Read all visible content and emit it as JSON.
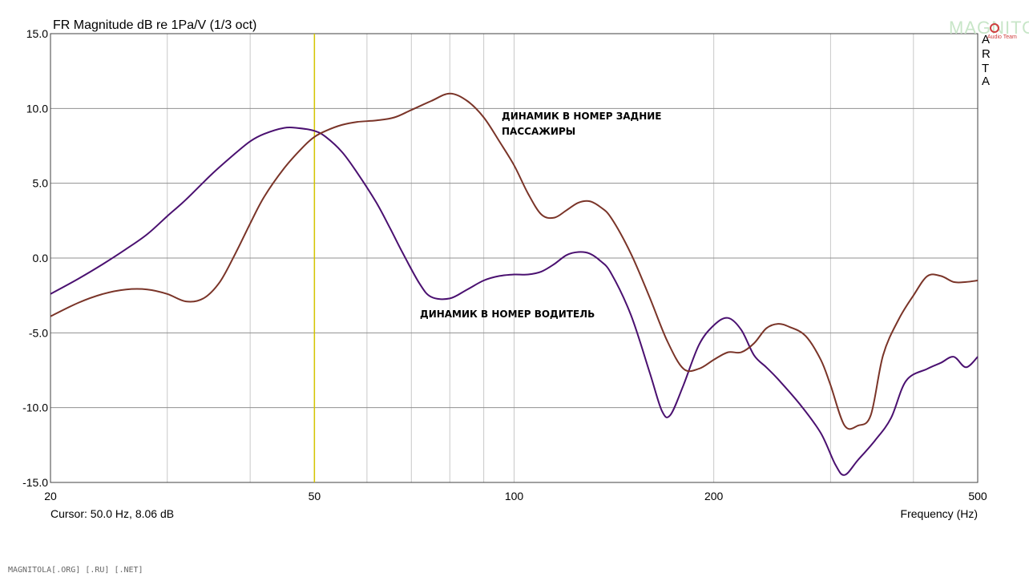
{
  "chart_data": {
    "type": "line",
    "title": "FR Magnitude dB re 1Pa/V (1/3 oct)",
    "xlabel": "Frequency (Hz)",
    "ylabel": "",
    "xscale": "log",
    "xlim": [
      20,
      500
    ],
    "ylim": [
      -15,
      15
    ],
    "x_ticks": [
      20,
      50,
      100,
      200,
      500
    ],
    "y_ticks": [
      15.0,
      10.0,
      5.0,
      0.0,
      -5.0,
      -10.0,
      -15.0
    ],
    "x_tick_labels": [
      "20",
      "50",
      "100",
      "200",
      "500"
    ],
    "y_tick_labels": [
      "15.0",
      "10.0",
      "5.0",
      "0.0",
      "-5.0",
      "-10.0",
      "-15.0"
    ],
    "grid": true,
    "cursor": {
      "x": 50,
      "label": "Cursor: 50.0 Hz, 8.06 dB",
      "color": "#d4c400"
    },
    "series": [
      {
        "name": "ДИНАМИК В НОМЕР ВОДИТЕЛЬ",
        "color": "#4a1070",
        "x": [
          20,
          22,
          24,
          26,
          28,
          30,
          32,
          35,
          38,
          40,
          42,
          45,
          47,
          50,
          52,
          55,
          58,
          62,
          65,
          68,
          72,
          75,
          80,
          85,
          90,
          95,
          100,
          105,
          110,
          115,
          120,
          125,
          130,
          135,
          140,
          150,
          160,
          167,
          172,
          180,
          190,
          200,
          210,
          220,
          230,
          240,
          250,
          270,
          290,
          305,
          315,
          330,
          350,
          370,
          390,
          420,
          440,
          460,
          480,
          500
        ],
        "values": [
          -2.4,
          -1.4,
          -0.4,
          0.6,
          1.6,
          2.8,
          3.9,
          5.6,
          7.0,
          7.8,
          8.3,
          8.7,
          8.7,
          8.5,
          8.1,
          7.1,
          5.7,
          3.7,
          2.0,
          0.3,
          -1.7,
          -2.6,
          -2.7,
          -2.1,
          -1.5,
          -1.2,
          -1.1,
          -1.1,
          -0.9,
          -0.4,
          0.2,
          0.4,
          0.3,
          -0.2,
          -1.0,
          -3.8,
          -7.6,
          -10.2,
          -10.5,
          -8.5,
          -5.8,
          -4.5,
          -4.0,
          -4.8,
          -6.5,
          -7.3,
          -8.1,
          -9.8,
          -11.7,
          -13.8,
          -14.5,
          -13.5,
          -12.2,
          -10.7,
          -8.2,
          -7.4,
          -7.0,
          -6.6,
          -7.3,
          -6.6
        ]
      },
      {
        "name": "ДИНАМИК В НОМЕР ЗАДНИЕ ПАССАЖИРЫ",
        "color": "#7a3428",
        "x": [
          20,
          22,
          24,
          26,
          28,
          30,
          32,
          34,
          36,
          38,
          40,
          42,
          45,
          48,
          50,
          52,
          55,
          58,
          62,
          66,
          70,
          75,
          80,
          85,
          90,
          95,
          100,
          105,
          110,
          115,
          120,
          125,
          130,
          135,
          140,
          150,
          160,
          170,
          180,
          190,
          200,
          210,
          220,
          230,
          240,
          250,
          260,
          275,
          290,
          300,
          315,
          330,
          345,
          360,
          380,
          400,
          420,
          440,
          460,
          480,
          500
        ],
        "values": [
          -3.9,
          -3.0,
          -2.4,
          -2.1,
          -2.1,
          -2.4,
          -2.9,
          -2.7,
          -1.6,
          0.3,
          2.3,
          4.1,
          6.0,
          7.4,
          8.1,
          8.5,
          8.9,
          9.1,
          9.2,
          9.4,
          9.9,
          10.5,
          11.0,
          10.5,
          9.4,
          7.8,
          6.2,
          4.3,
          2.9,
          2.7,
          3.2,
          3.7,
          3.8,
          3.4,
          2.7,
          0.3,
          -2.6,
          -5.5,
          -7.4,
          -7.4,
          -6.8,
          -6.3,
          -6.3,
          -5.7,
          -4.7,
          -4.4,
          -4.6,
          -5.2,
          -6.8,
          -8.5,
          -11.2,
          -11.2,
          -10.5,
          -6.5,
          -4.1,
          -2.5,
          -1.2,
          -1.2,
          -1.6,
          -1.6,
          -1.5
        ]
      }
    ],
    "annotations": [
      {
        "lines": [
          "ДИНАМИК В НОМЕР ЗАДНИЕ",
          "ПАССАЖИРЫ"
        ]
      },
      {
        "lines": [
          "ДИНАМИК В НОМЕР ВОДИТЕЛЬ"
        ]
      }
    ],
    "brand_letters": [
      "A",
      "R",
      "T",
      "A"
    ]
  },
  "watermark": {
    "bottom_text": "MAGNITOLA[.ORG] [.RU] [.NET]",
    "logo_text": "MAGNITOLA",
    "logo_subtext": "Audio Team"
  }
}
